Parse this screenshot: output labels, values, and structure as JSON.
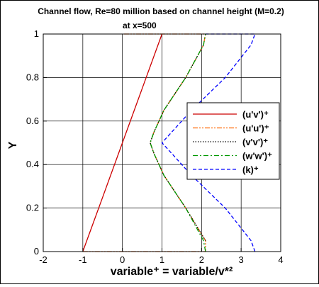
{
  "chart_data": {
    "type": "line",
    "title": "Channel flow, Re=80 million based on channel height (M=0.2)",
    "subtitle": "at x=500",
    "xlabel": "variable⁺ = variable/v*²",
    "ylabel": "Y",
    "xlim": [
      -2,
      4
    ],
    "ylim": [
      0,
      1
    ],
    "xticks": [
      "-2",
      "-1",
      "0",
      "1",
      "2",
      "3",
      "4"
    ],
    "yticks": [
      "0",
      "0.2",
      "0.4",
      "0.6",
      "0.8",
      "1"
    ],
    "grid": true,
    "legend_position": "right",
    "series": [
      {
        "name": "(u'v')⁺",
        "color": "#cc0000",
        "dash": "solid",
        "points": [
          [
            -1,
            0
          ],
          [
            -0.5,
            0.25
          ],
          [
            0,
            0.5
          ],
          [
            0.5,
            0.75
          ],
          [
            1,
            1
          ]
        ]
      },
      {
        "name": "(u'u')⁺",
        "color": "#ff6600",
        "dash": "dashdotdot",
        "points": [
          [
            -1,
            0
          ],
          [
            1,
            0
          ],
          [
            2.1,
            0
          ],
          [
            2.1,
            0.05
          ],
          [
            1.6,
            0.2
          ],
          [
            1.05,
            0.35
          ],
          [
            0.8,
            0.45
          ],
          [
            0.7,
            0.5
          ],
          [
            0.8,
            0.55
          ],
          [
            1.05,
            0.65
          ],
          [
            1.6,
            0.8
          ],
          [
            2.05,
            0.95
          ],
          [
            2.1,
            1
          ],
          [
            0,
            1
          ]
        ]
      },
      {
        "name": "(v'v')⁺",
        "color": "#000000",
        "dash": "dotted",
        "points": [
          [
            2.1,
            0.05
          ],
          [
            1.6,
            0.2
          ],
          [
            1.05,
            0.35
          ],
          [
            0.8,
            0.45
          ],
          [
            0.7,
            0.5
          ],
          [
            0.8,
            0.55
          ],
          [
            1.05,
            0.65
          ],
          [
            1.6,
            0.8
          ],
          [
            2.05,
            0.95
          ]
        ]
      },
      {
        "name": "(w'w')⁺",
        "color": "#009900",
        "dash": "dashdot",
        "points": [
          [
            2.1,
            0
          ],
          [
            2.05,
            0.05
          ],
          [
            1.6,
            0.2
          ],
          [
            1.05,
            0.35
          ],
          [
            0.8,
            0.45
          ],
          [
            0.7,
            0.5
          ],
          [
            0.8,
            0.55
          ],
          [
            1.05,
            0.65
          ],
          [
            1.6,
            0.8
          ],
          [
            2.05,
            0.95
          ],
          [
            2.1,
            1
          ]
        ]
      },
      {
        "name": "(k)⁺",
        "color": "#0000ff",
        "dash": "dashed",
        "points": [
          [
            3.35,
            0
          ],
          [
            3.25,
            0.05
          ],
          [
            2.6,
            0.2
          ],
          [
            1.75,
            0.35
          ],
          [
            1.25,
            0.45
          ],
          [
            1.0,
            0.5
          ],
          [
            1.25,
            0.55
          ],
          [
            1.75,
            0.65
          ],
          [
            2.6,
            0.8
          ],
          [
            3.25,
            0.95
          ],
          [
            3.35,
            1
          ],
          [
            2.1,
            1
          ]
        ]
      }
    ]
  }
}
